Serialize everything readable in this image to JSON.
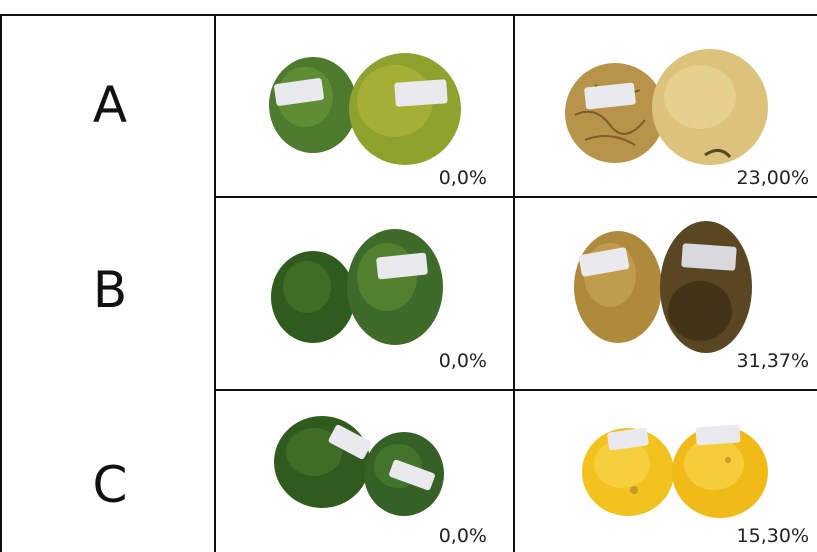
{
  "rows": [
    {
      "label": "A",
      "left_value": "0,0%",
      "right_value": "23,00%"
    },
    {
      "label": "B",
      "left_value": "0,0%",
      "right_value": "31,37%"
    },
    {
      "label": "C",
      "left_value": "0,0%",
      "right_value": "15,30%"
    }
  ],
  "colors": {
    "green_fruit": "#3f6b2a",
    "green_yellow_fruit": "#8a9a2f",
    "wrinkled_fruit": "#c9a85a",
    "rotten_fruit": "#5a4622",
    "yellow_fruit": "#f2c21e",
    "tag": "#e9e9ee"
  }
}
